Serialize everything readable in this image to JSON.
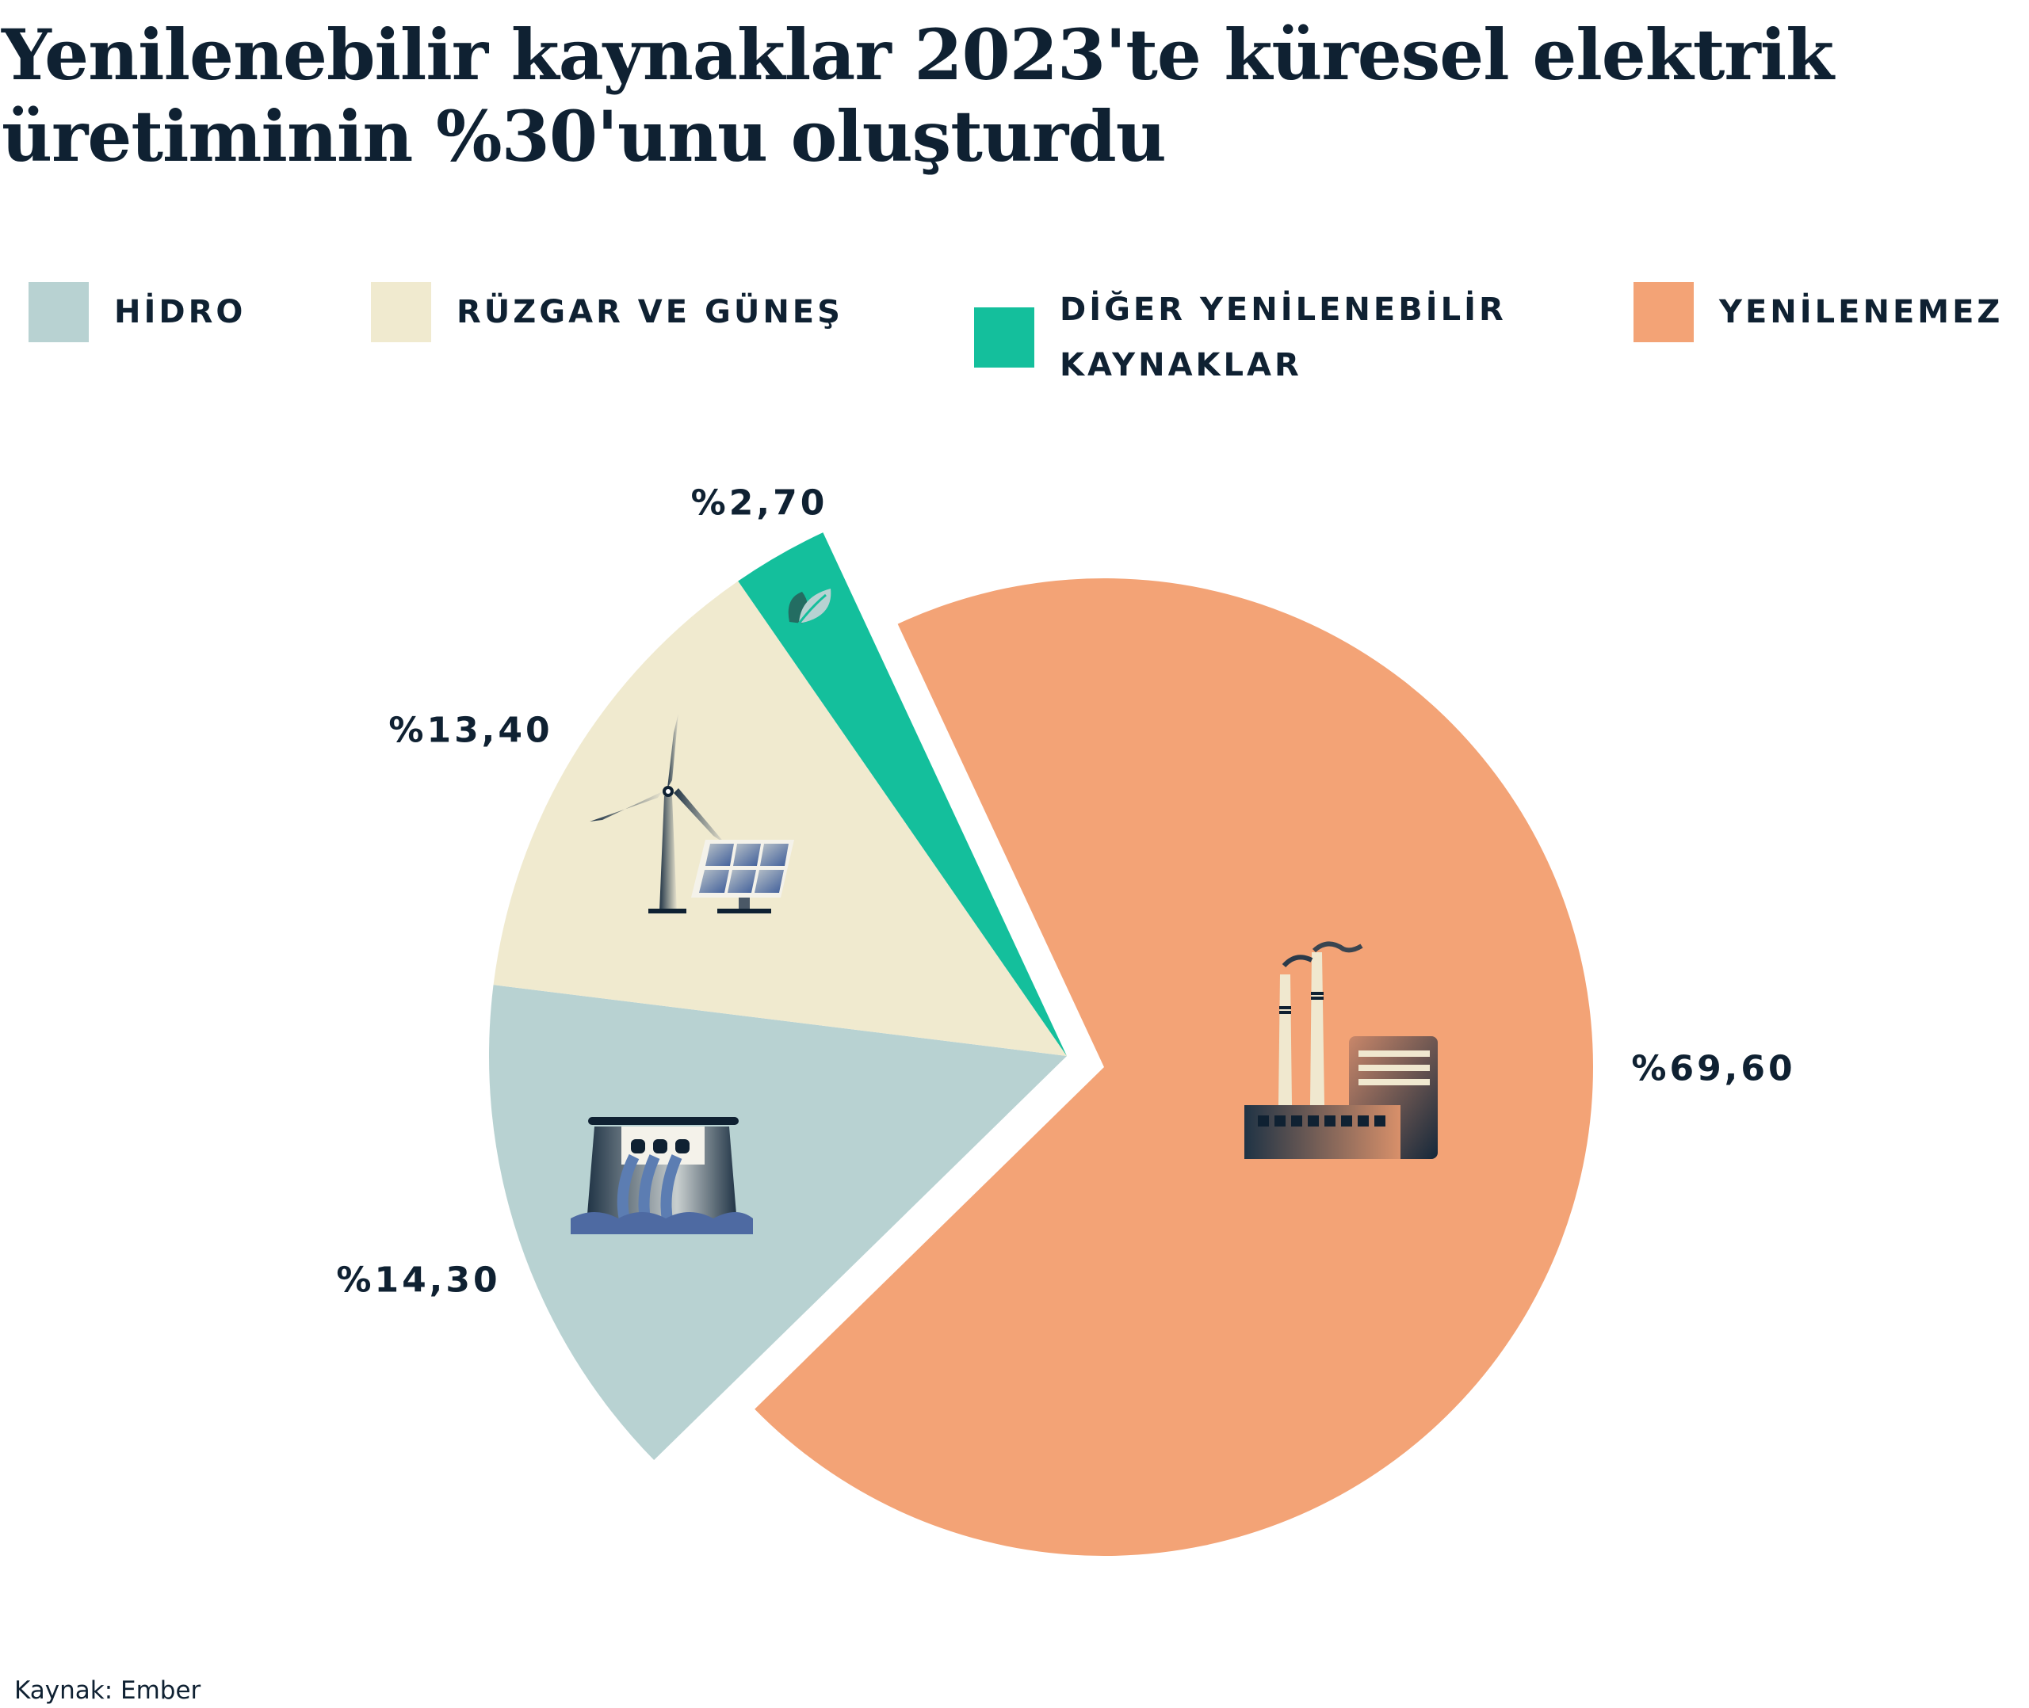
{
  "title": "Yenilenebilir kaynaklar 2023'te küresel elektrik üretiminin %30'unu oluşturdu",
  "source": "Kaynak: Ember",
  "chart_data": {
    "type": "pie",
    "title": "Yenilenebilir kaynaklar 2023'te küresel elektrik üretiminin %30'unu oluşturdu",
    "legend_position": "top",
    "slices": [
      {
        "name": "HİDRO",
        "value": 14.3,
        "label": "%14,30",
        "color": "#b8d2d2",
        "icon": "hydro-dam-icon",
        "exploded": true
      },
      {
        "name": "RÜZGAR VE GÜNEŞ",
        "value": 13.4,
        "label": "%13,40",
        "color": "#f0eacf",
        "icon": "wind-solar-icon",
        "exploded": true
      },
      {
        "name": "DİĞER YENİLENEBİLİR KAYNAKLAR",
        "value": 2.7,
        "label": "%2,70",
        "color": "#14bf9c",
        "icon": "leaf-icon",
        "exploded": true
      },
      {
        "name": "YENİLENEMEZ",
        "value": 69.6,
        "label": "%69,60",
        "color": "#f3a376",
        "icon": "factory-icon",
        "exploded": false
      }
    ]
  }
}
